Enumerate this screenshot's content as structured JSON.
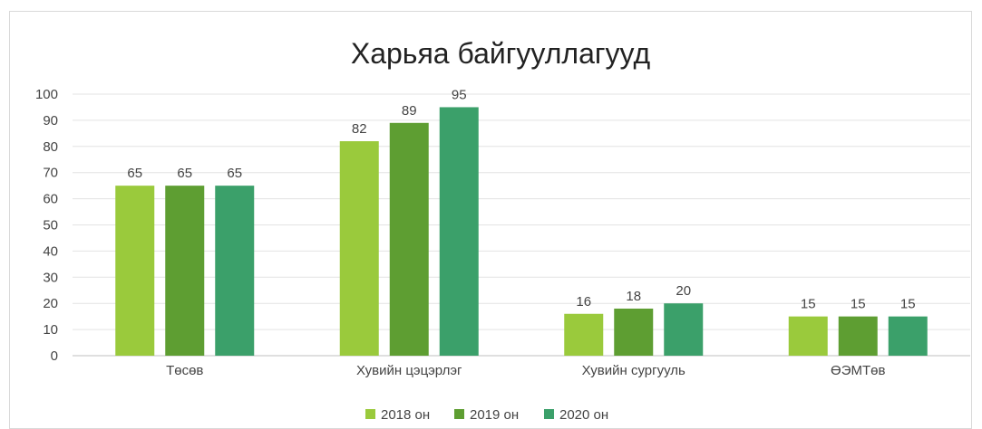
{
  "chart_data": {
    "type": "bar",
    "title": "Харьяа байгууллагууд",
    "categories": [
      "Төсөв",
      "Хувийн цэцэрлэг",
      "Хувийн сургууль",
      "ӨЭМТөв"
    ],
    "series": [
      {
        "name": "2018 он",
        "color": "#9ACA3C",
        "values": [
          65,
          82,
          16,
          15
        ]
      },
      {
        "name": "2019 он",
        "color": "#5E9E32",
        "values": [
          65,
          89,
          18,
          15
        ]
      },
      {
        "name": "2020 он",
        "color": "#3BA06A",
        "values": [
          65,
          95,
          20,
          15
        ]
      }
    ],
    "ylim": [
      0,
      100
    ],
    "yticks": [
      0,
      10,
      20,
      30,
      40,
      50,
      60,
      70,
      80,
      90,
      100
    ],
    "grid": true,
    "legend_position": "bottom",
    "data_labels": true
  }
}
